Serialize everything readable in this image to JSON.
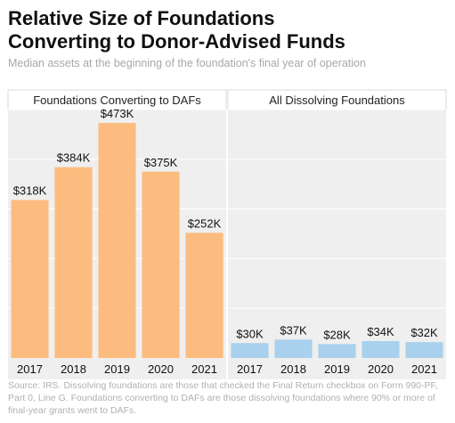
{
  "title_line1": "Relative Size of Foundations",
  "title_line2": "Converting to Donor-Advised Funds",
  "subtitle": "Median assets at the beginning of the foundation's final year of operation",
  "source": "Source: IRS. Dissolving foundations are those that checked the Final Return checkbox on Form 990-PF, Part 0, Line G. Foundations converting to DAFs are those dissolving foundations where 90% or more of final-year grants went to DAFs.",
  "colors": {
    "panel1_bar": "#fcbc80",
    "panel2_bar": "#a9d0ec",
    "panel_bg": "#efefef",
    "gridline": "#ffffff"
  },
  "chart_data": {
    "type": "bar",
    "ylim": [
      0,
      500
    ],
    "panels": [
      {
        "title": "Foundations Converting to DAFs",
        "categories": [
          "2017",
          "2018",
          "2019",
          "2020",
          "2021"
        ],
        "values": [
          318,
          384,
          473,
          375,
          252
        ],
        "labels": [
          "$318K",
          "$384K",
          "$473K",
          "$375K",
          "$252K"
        ],
        "color": "#fcbc80"
      },
      {
        "title": "All Dissolving Foundations",
        "categories": [
          "2017",
          "2018",
          "2019",
          "2020",
          "2021"
        ],
        "values": [
          30,
          37,
          28,
          34,
          32
        ],
        "labels": [
          "$30K",
          "$37K",
          "$28K",
          "$34K",
          "$32K"
        ],
        "color": "#a9d0ec"
      }
    ]
  }
}
